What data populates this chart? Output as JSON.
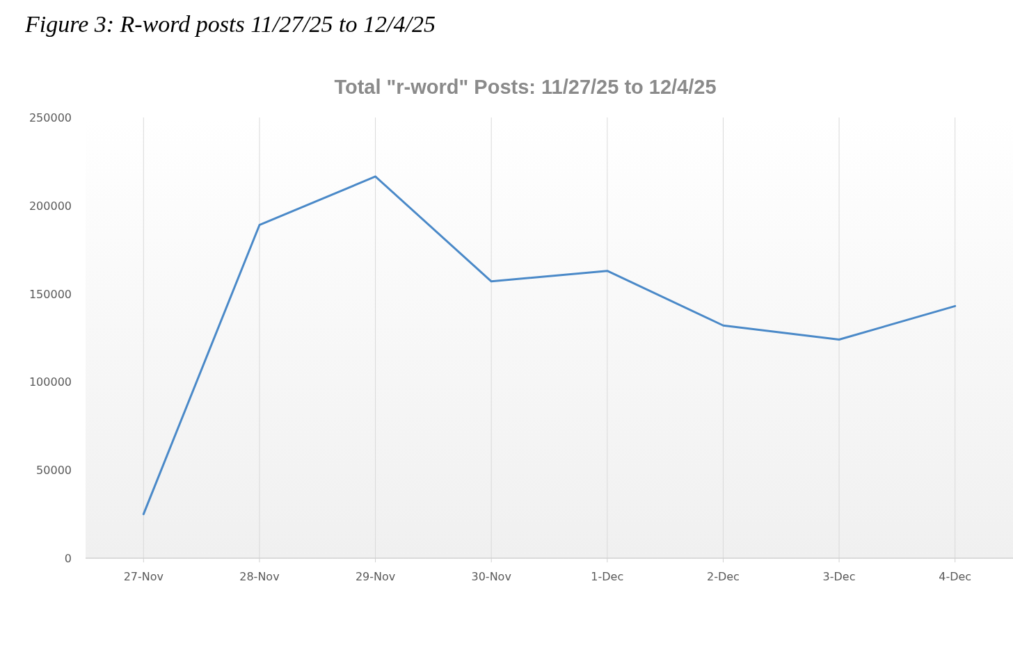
{
  "chart_data": {
    "type": "line",
    "title": "Figure 3: R-word posts 11/27/25 to 12/4/25",
    "subtitle": "Total \"r-word\" Posts: 11/27/25 to 12/4/25",
    "categories": [
      "27-Nov",
      "28-Nov",
      "29-Nov",
      "30-Nov",
      "1-Dec",
      "2-Dec",
      "3-Dec",
      "4-Dec"
    ],
    "series": [
      {
        "color": "#4a89c8",
        "values": [
          25000,
          189000,
          216500,
          157000,
          163000,
          132000,
          124000,
          143000
        ]
      }
    ],
    "ylim": [
      0,
      250000
    ],
    "yticks": [
      0,
      50000,
      100000,
      150000,
      200000,
      250000
    ],
    "grid": "x",
    "marker": "none",
    "line_style": "solid"
  }
}
